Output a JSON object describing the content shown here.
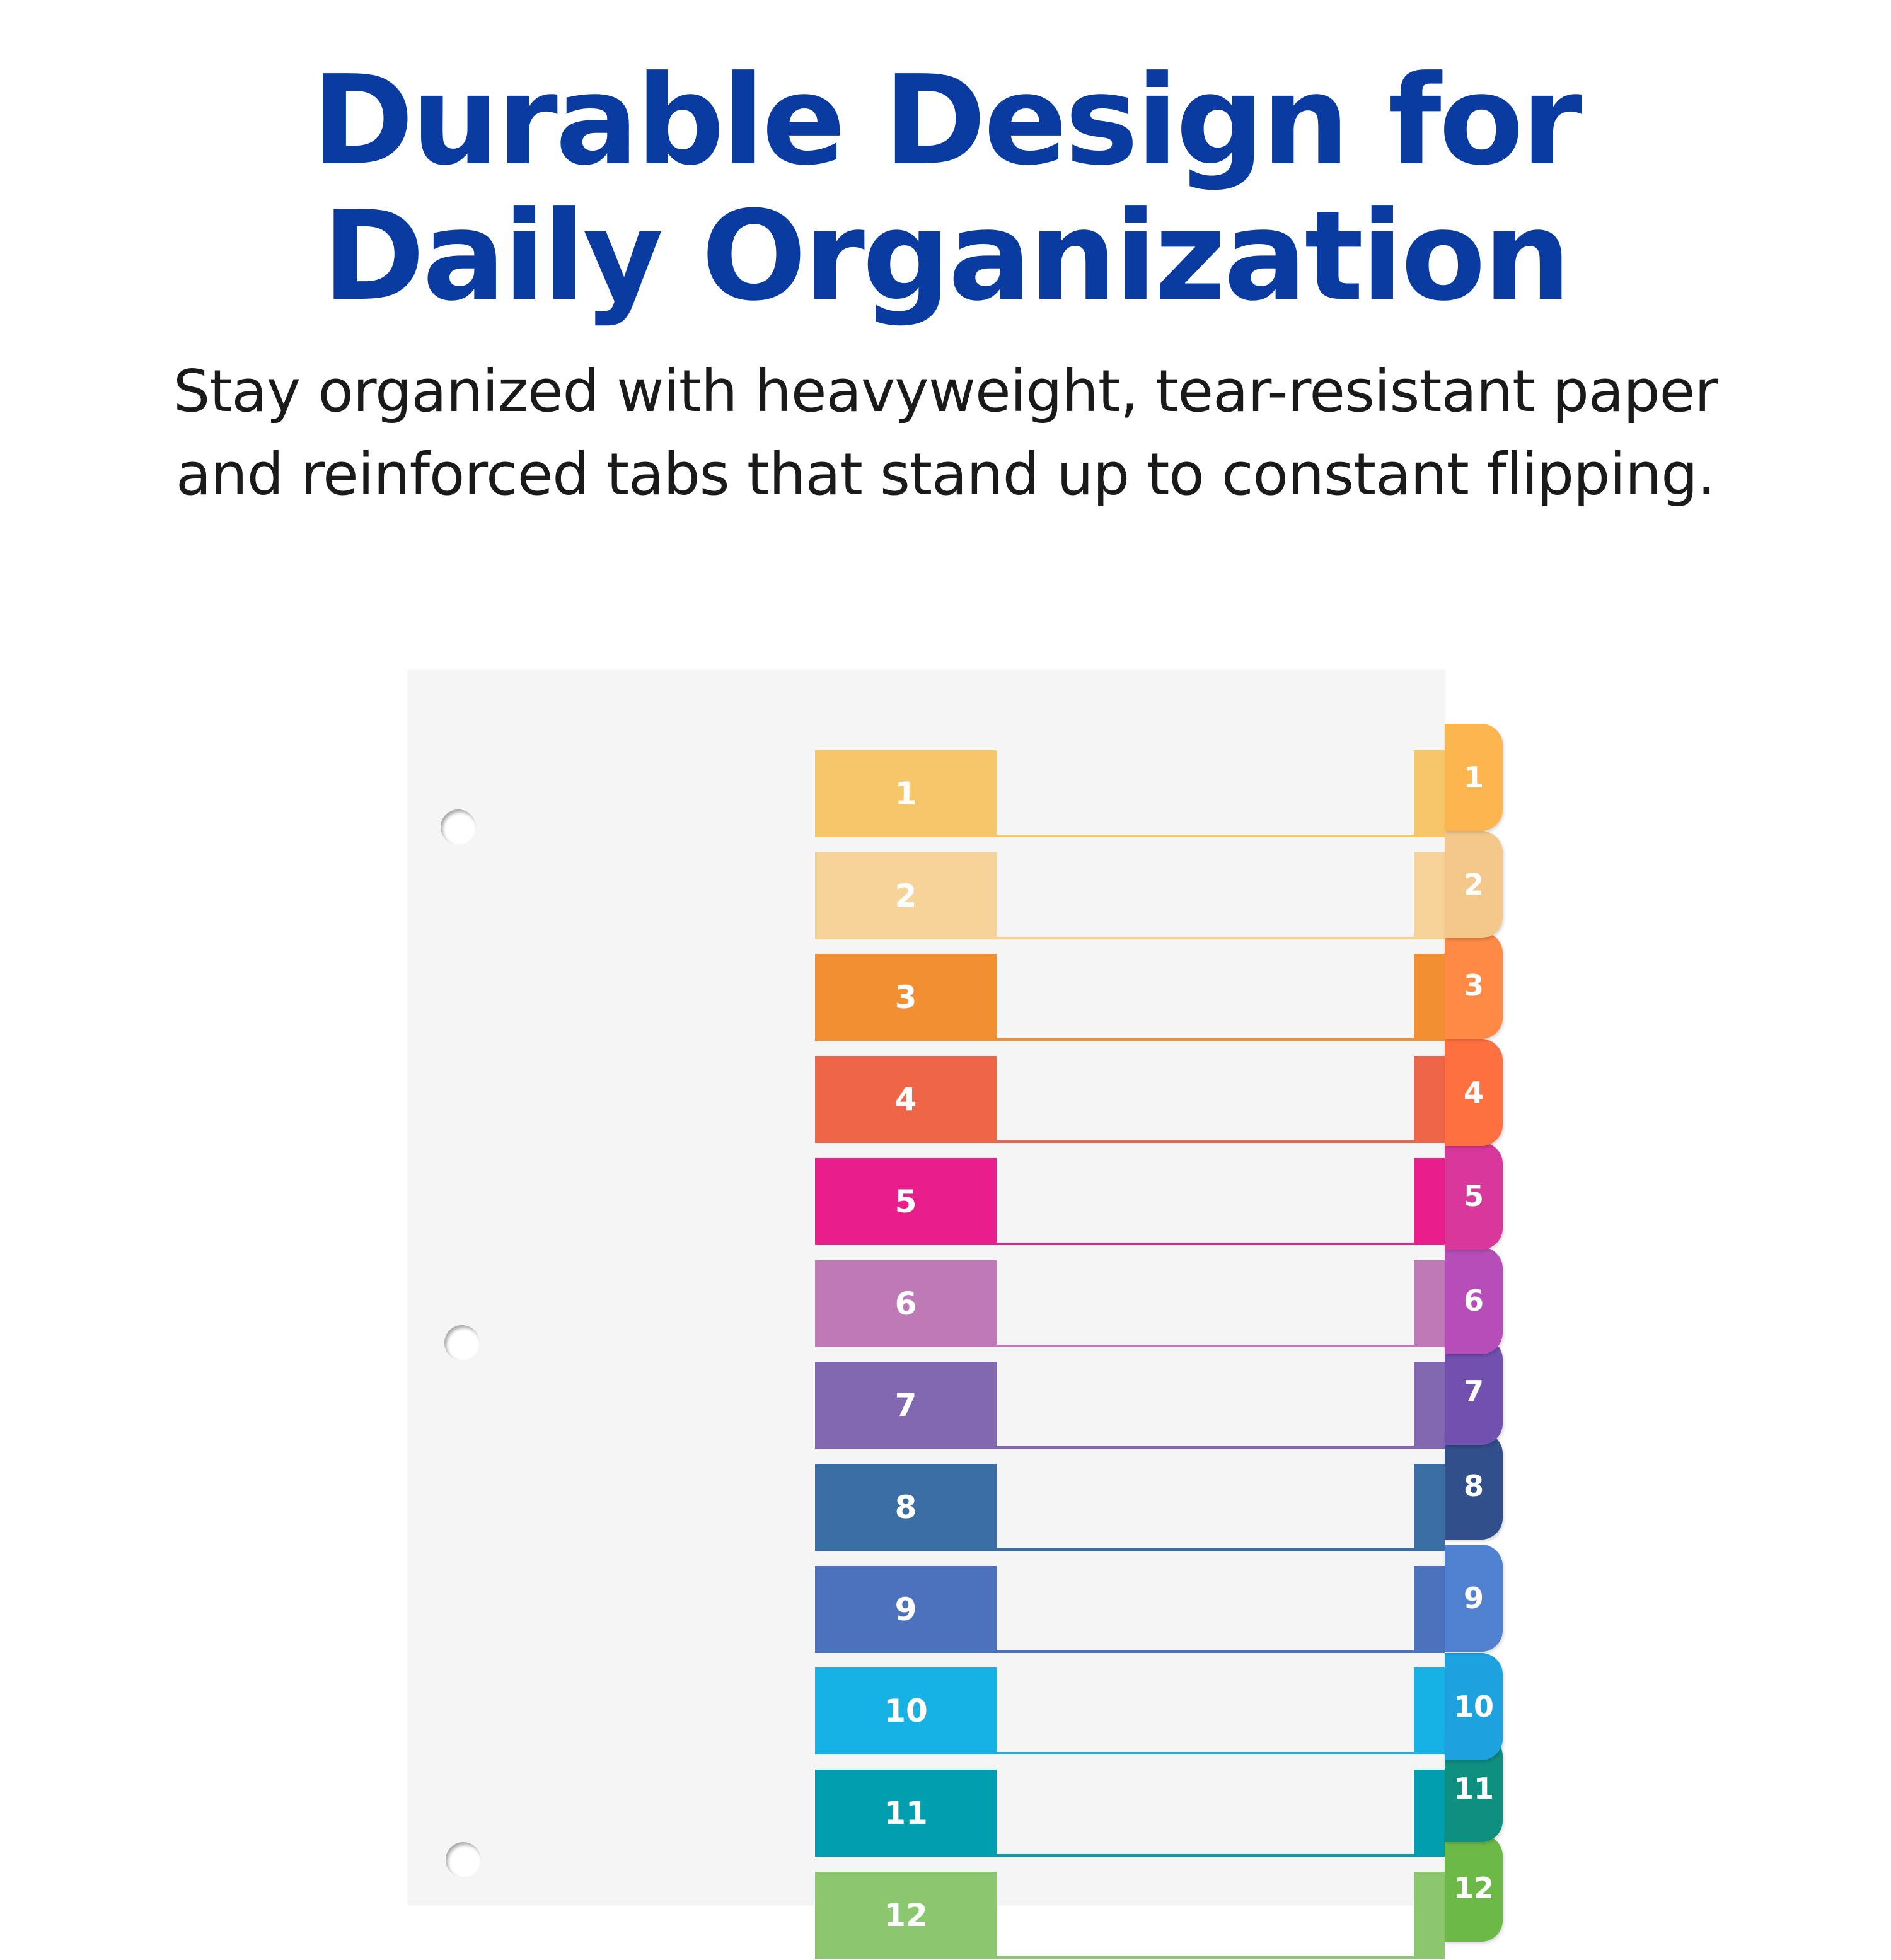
{
  "headline": {
    "line1": "Durable Design for",
    "line2": "Daily Organization"
  },
  "subtitle": {
    "line1": "Stay organized with heavyweight, tear-resistant paper",
    "line2": "and reinforced tabs that stand up to constant flipping."
  },
  "colors": {
    "headline": "#0a3ba0",
    "sheet": "#f5f5f5"
  },
  "dividers": [
    {
      "label": "1",
      "color": "#F5C76A",
      "tab_color": "#FDB64F"
    },
    {
      "label": "2",
      "color": "#F6D398",
      "tab_color": "#F3C88A"
    },
    {
      "label": "3",
      "color": "#F28F32",
      "tab_color": "#FE8A45"
    },
    {
      "label": "4",
      "color": "#EE6647",
      "tab_color": "#FF7040"
    },
    {
      "label": "5",
      "color": "#E91E8C",
      "tab_color": "#D9379A"
    },
    {
      "label": "6",
      "color": "#BE79B6",
      "tab_color": "#B74DB8"
    },
    {
      "label": "7",
      "color": "#8268B1",
      "tab_color": "#7150B0"
    },
    {
      "label": "8",
      "color": "#3A6EA5",
      "tab_color": "#314F8A"
    },
    {
      "label": "9",
      "color": "#4C72BE",
      "tab_color": "#5080D0"
    },
    {
      "label": "10",
      "color": "#17B2E5",
      "tab_color": "#1DA1DF"
    },
    {
      "label": "11",
      "color": "#009EAE",
      "tab_color": "#0E8F80"
    },
    {
      "label": "12",
      "color": "#8BC76E",
      "tab_color": "#6DB947"
    }
  ]
}
